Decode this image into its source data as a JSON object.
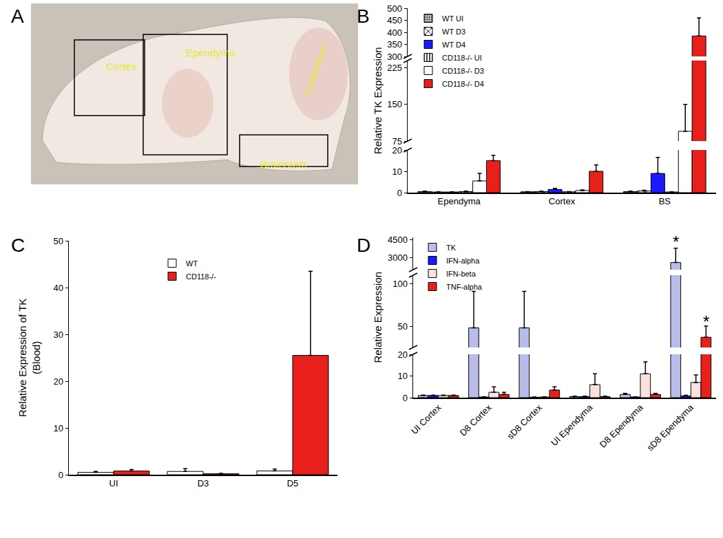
{
  "chart_data": [
    {
      "type": "image",
      "title": "A",
      "labels": [
        "Cortex",
        "Ependyma",
        "Cerebellum",
        "Brainstem"
      ]
    },
    {
      "type": "bar",
      "title": "B",
      "y_label": [
        "Relative TK Expression"
      ],
      "categories": [
        "Ependyma",
        "Cortex",
        "BS"
      ],
      "y_segments": [
        {
          "ylim": [
            0,
            20
          ],
          "yticks": [
            0,
            10,
            20
          ]
        },
        {
          "ylim": [
            75,
            240
          ],
          "yticks": [
            75,
            150,
            225
          ]
        },
        {
          "ylim": [
            300,
            500
          ],
          "yticks": [
            300,
            350,
            400,
            450,
            500
          ]
        }
      ],
      "legend": "top left",
      "grid": false,
      "series": [
        {
          "name": "WT UI",
          "color": "#ffffff",
          "marker": "checker",
          "values": [
            0.5,
            0.4,
            0.5
          ],
          "errors": [
            0.2,
            0.1,
            0.2
          ]
        },
        {
          "name": "WT D3",
          "color": "#ffffff",
          "marker": "crosshatch",
          "values": [
            0.3,
            0.5,
            0.8
          ],
          "errors": [
            0.1,
            0.2,
            0.3
          ]
        },
        {
          "name": "WT D4",
          "color": "#1a1aff",
          "values": [
            0.3,
            1.5,
            9
          ],
          "errors": [
            0.1,
            0.5,
            7.5
          ]
        },
        {
          "name": "CD118-/- UI",
          "color": "#ffffff",
          "marker": "vertical",
          "values": [
            0.5,
            0.4,
            0.3
          ],
          "errors": [
            0.2,
            0.1,
            0.1
          ]
        },
        {
          "name": "CD118-/- D3",
          "color": "#ffffff",
          "values": [
            5.5,
            1,
            95
          ],
          "errors": [
            3.5,
            0.3,
            55
          ]
        },
        {
          "name": "CD118-/- D4",
          "color": "#e8201c",
          "values": [
            15,
            10,
            385
          ],
          "errors": [
            2.5,
            3,
            75
          ]
        }
      ]
    },
    {
      "type": "bar",
      "title": "C",
      "y_label": [
        "Relative Expression of TK",
        "(Blood)"
      ],
      "categories": [
        "UI",
        "D3",
        "D5"
      ],
      "ylim": [
        0,
        50
      ],
      "yticks": [
        0,
        10,
        20,
        30,
        40,
        50
      ],
      "legend": "top left",
      "grid": false,
      "series": [
        {
          "name": "WT",
          "color": "#ffffff",
          "values": [
            0.5,
            0.7,
            0.8
          ],
          "errors": [
            0.2,
            0.6,
            0.4
          ]
        },
        {
          "name": "CD118-/-",
          "color": "#e8201c",
          "values": [
            0.8,
            0.2,
            25.5
          ],
          "errors": [
            0.3,
            0.1,
            18
          ]
        }
      ]
    },
    {
      "type": "bar",
      "title": "D",
      "y_label": [
        "Relative Expression"
      ],
      "categories": [
        "UI Cortex",
        "D8 Cortex",
        "sD8 Cortex",
        "UI Ependyma",
        "D8 Ependyma",
        "sD8 Ependyma"
      ],
      "y_segments": [
        {
          "ylim": [
            0,
            20
          ],
          "yticks": [
            0,
            10,
            20
          ]
        },
        {
          "ylim": [
            25,
            110
          ],
          "yticks": [
            50,
            100
          ]
        },
        {
          "ylim": [
            2000,
            4700
          ],
          "yticks": [
            3000,
            4500
          ]
        }
      ],
      "legend": "top left",
      "grid": false,
      "series": [
        {
          "name": "TK",
          "color": "#b8bce8",
          "values": [
            1,
            48,
            48,
            0.5,
            1.5,
            2600
          ],
          "errors": [
            0.2,
            43,
            43,
            0.2,
            0.5,
            1200
          ]
        },
        {
          "name": "IFN-alpha",
          "color": "#1a1aff",
          "values": [
            1,
            0.3,
            0.2,
            0.5,
            0.3,
            0.8
          ],
          "errors": [
            0.2,
            0.1,
            0.1,
            0.2,
            0.1,
            0.3
          ]
        },
        {
          "name": "IFN-beta",
          "color": "#fbe0e0",
          "values": [
            1,
            2.5,
            0.3,
            6,
            11,
            7
          ],
          "errors": [
            0.2,
            2.5,
            0.1,
            5,
            5.5,
            3.5
          ]
        },
        {
          "name": "TNF-alpha",
          "color": "#e8201c",
          "values": [
            1,
            1.5,
            3.5,
            0.5,
            1.5,
            37
          ],
          "errors": [
            0.2,
            1,
            1.5,
            0.2,
            0.5,
            13
          ]
        }
      ],
      "annotations": [
        {
          "category": "sD8 Ependyma",
          "series": "TK",
          "y": 4300,
          "text": "*"
        },
        {
          "category": "sD8 Ependyma",
          "series": "TNF-alpha",
          "y": 55,
          "text": "*"
        }
      ]
    }
  ]
}
